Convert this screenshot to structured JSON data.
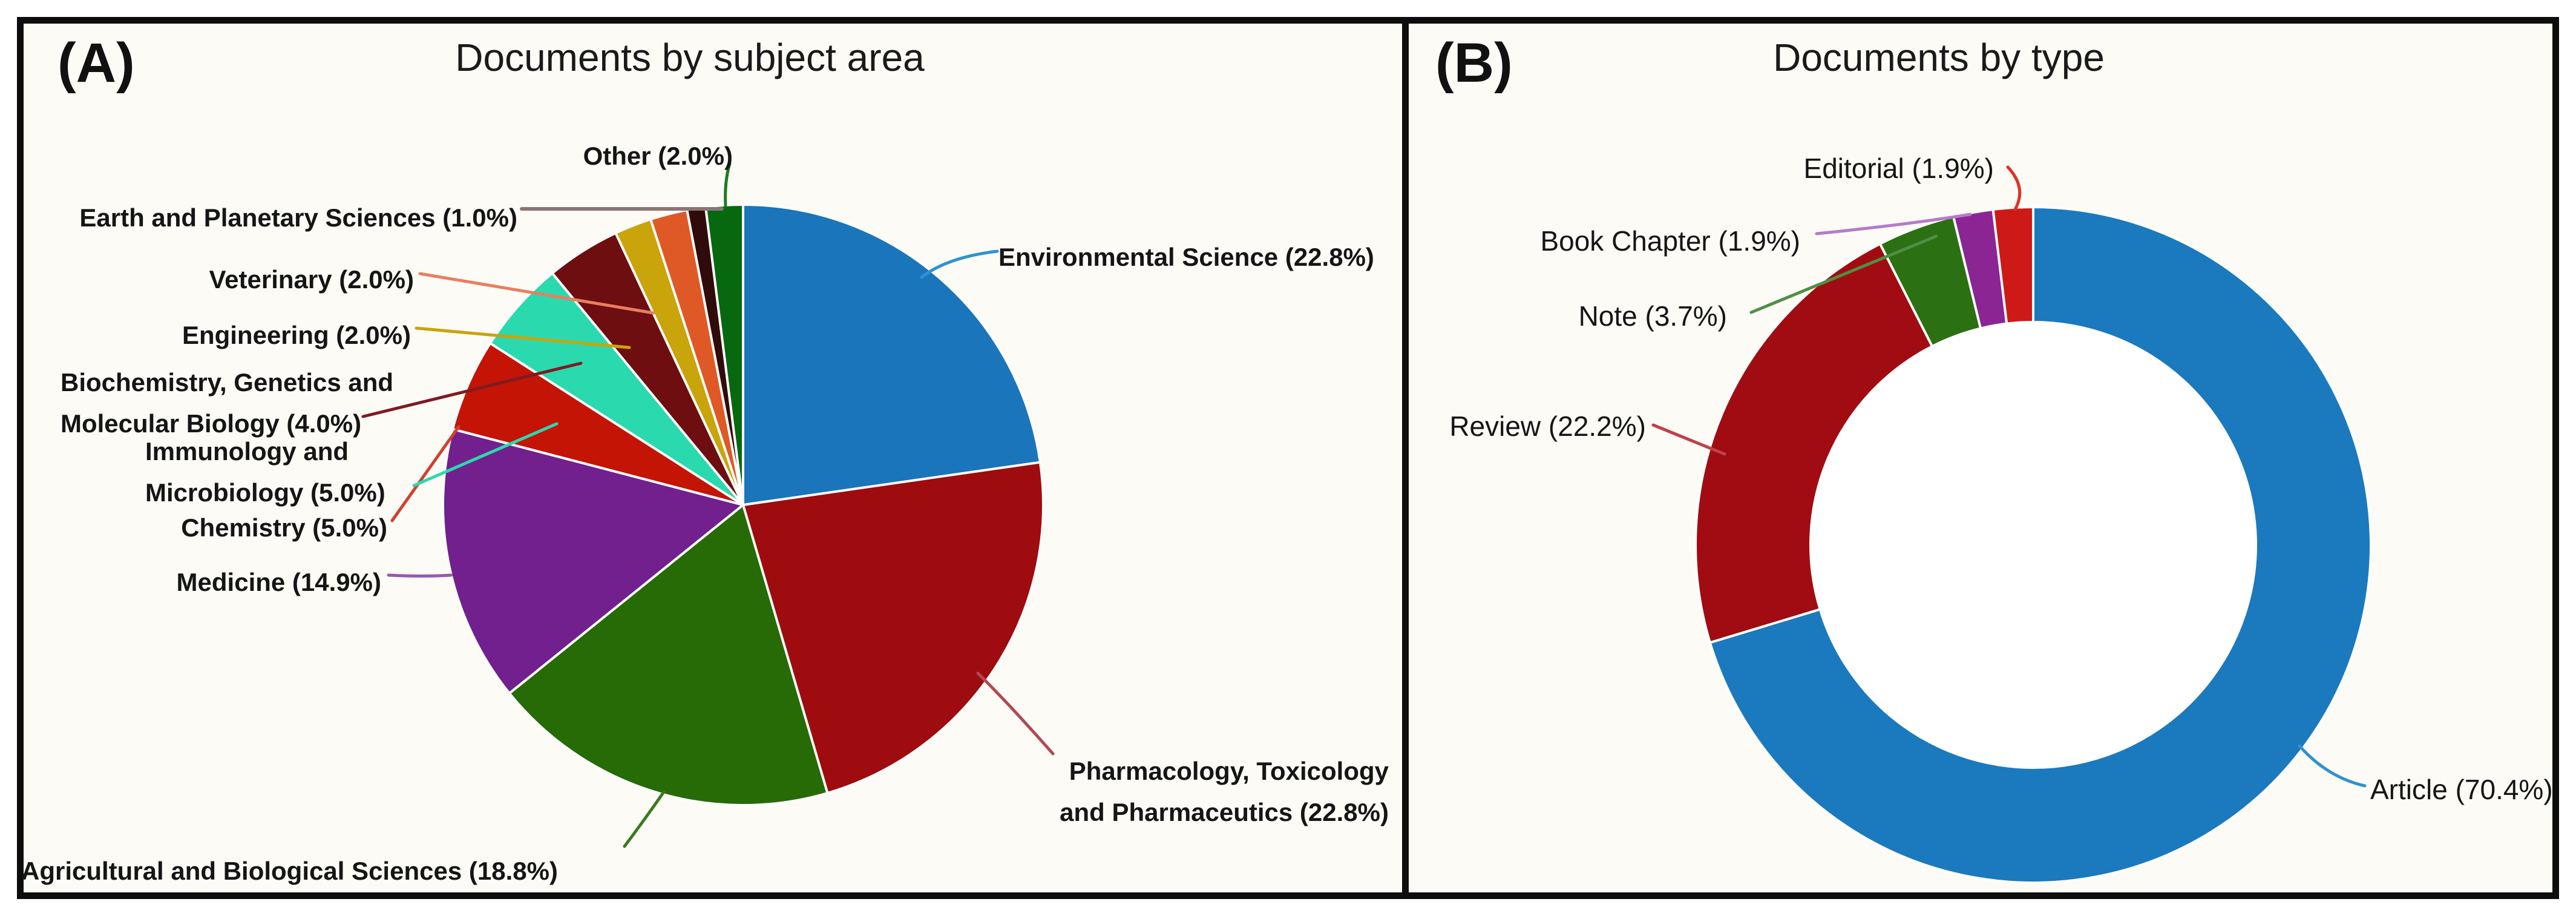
{
  "page": {
    "background": "#FFFFFF",
    "panel_background": "#FCFBF6",
    "frame_color": "#0D0D0D",
    "text_color": "#151515",
    "donut_hole_color": "#FFFFFF"
  },
  "panels": [
    {
      "tag": "(A)"
    },
    {
      "tag": "(B)"
    }
  ],
  "chart_data": [
    {
      "type": "pie",
      "title": "Documents by subject area",
      "unit": "percent",
      "start_angle_deg": 0,
      "direction": "clockwise",
      "slices": [
        {
          "id": "environmental-science",
          "label": "Environmental Science",
          "value": 22.8,
          "display": "Environmental Science (22.8%)",
          "color": "#1B75BA",
          "leader_color": "#2E93CE"
        },
        {
          "id": "pharmacology",
          "label": "Pharmacology, Toxicology and Pharmaceutics",
          "value": 22.8,
          "display": "Pharmacology, Toxicology\nand Pharmaceutics (22.8%)",
          "color": "#9E0C10",
          "leader_color": "#B04A52"
        },
        {
          "id": "agricultural",
          "label": "Agricultural and Biological Sciences",
          "value": 18.8,
          "display": "Agricultural and Biological Sciences (18.8%)",
          "color": "#266B06",
          "leader_color": "#3A7A1E"
        },
        {
          "id": "medicine",
          "label": "Medicine",
          "value": 14.9,
          "display": "Medicine (14.9%)",
          "color": "#71208D",
          "leader_color": "#9A56B0"
        },
        {
          "id": "chemistry",
          "label": "Chemistry",
          "value": 5.0,
          "display": "Chemistry (5.0%)",
          "color": "#C41405",
          "leader_color": "#D0402E"
        },
        {
          "id": "immunology",
          "label": "Immunology and Microbiology",
          "value": 5.0,
          "display": "Immunology and\nMicrobiology (5.0%)",
          "color": "#2BD9AE",
          "leader_color": "#2BD9AE"
        },
        {
          "id": "biochemistry",
          "label": "Biochemistry, Genetics and Molecular Biology",
          "value": 4.0,
          "display": "Biochemistry, Genetics and\nMolecular Biology (4.0%)",
          "color": "#6E0E10",
          "leader_color": "#7E1B22"
        },
        {
          "id": "engineering",
          "label": "Engineering",
          "value": 2.0,
          "display": "Engineering (2.0%)",
          "color": "#C9A40B",
          "leader_color": "#C9A40B"
        },
        {
          "id": "veterinary",
          "label": "Veterinary",
          "value": 2.0,
          "display": "Veterinary (2.0%)",
          "color": "#DE5926",
          "leader_color": "#E87F5E"
        },
        {
          "id": "earth",
          "label": "Earth and Planetary Sciences",
          "value": 1.0,
          "display": "Earth and Planetary Sciences (1.0%)",
          "color": "#300B0B",
          "leader_color": "#8A7676"
        },
        {
          "id": "other",
          "label": "Other",
          "value": 2.0,
          "display": "Other (2.0%)",
          "color": "#07680F",
          "leader_color": "#1E7A1E"
        }
      ]
    },
    {
      "type": "donut",
      "title": "Documents by type",
      "unit": "percent",
      "start_angle_deg": 0,
      "direction": "clockwise",
      "inner_radius_ratio": 0.66,
      "slices": [
        {
          "id": "article",
          "label": "Article",
          "value": 70.4,
          "display": "Article (70.4%)",
          "color": "#1B79BE",
          "leader_color": "#2E93CE"
        },
        {
          "id": "review",
          "label": "Review",
          "value": 22.2,
          "display": "Review (22.2%)",
          "color": "#A00C12",
          "leader_color": "#C04048"
        },
        {
          "id": "note",
          "label": "Note",
          "value": 3.7,
          "display": "Note (3.7%)",
          "color": "#2B7012",
          "leader_color": "#4F8F44"
        },
        {
          "id": "book-chapter",
          "label": "Book Chapter",
          "value": 1.9,
          "display": "Book Chapter (1.9%)",
          "color": "#8A2593",
          "leader_color": "#B57BC8"
        },
        {
          "id": "editorial",
          "label": "Editorial",
          "value": 1.9,
          "display": "Editorial (1.9%)",
          "color": "#CE1A17",
          "leader_color": "#E03226"
        }
      ]
    }
  ]
}
